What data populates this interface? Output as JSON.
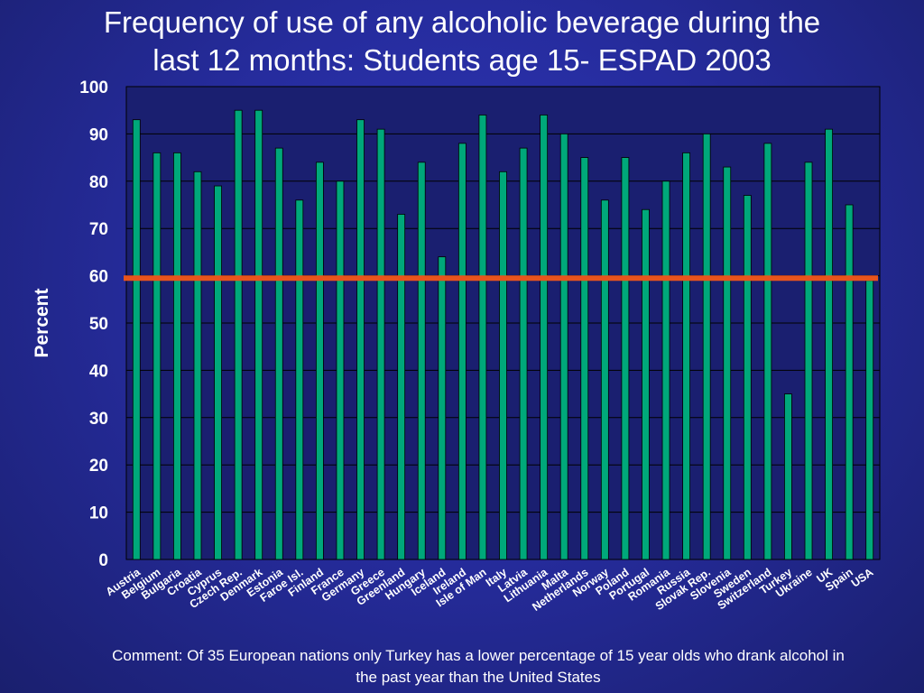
{
  "title": "Frequency of use of any alcoholic beverage during the\nlast 12 months: Students age 15- ESPAD 2003",
  "comment": "Comment: Of 35 European nations only Turkey has a lower percentage of 15 year olds who drank alcohol in\nthe past year than the United States",
  "colors": {
    "bar": "#00a87a",
    "reference_line": "#e8541c",
    "plot_background": "#1a1f70",
    "grid": "#000000",
    "text": "#ffffff"
  },
  "chart_data": {
    "type": "bar",
    "ylabel": "Percent",
    "ylim": [
      0,
      100
    ],
    "yticks": [
      0,
      10,
      20,
      30,
      40,
      50,
      60,
      70,
      80,
      90,
      100
    ],
    "grid": true,
    "reference_line": 59.5,
    "categories": [
      "Austria",
      "Belgium",
      "Bulgaria",
      "Croatia",
      "Cyprus",
      "Czech Rep.",
      "Denmark",
      "Estonia",
      "Faroe Isl.",
      "Finland",
      "France",
      "Germany",
      "Greece",
      "Greenland",
      "Hungary",
      "Iceland",
      "Ireland",
      "Isle of Man",
      "Italy",
      "Latvia",
      "Lithuania",
      "Malta",
      "Netherlands",
      "Norway",
      "Poland",
      "Portugal",
      "Romania",
      "Russia",
      "Slovak Rep.",
      "Slovenia",
      "Sweden",
      "Switzerland",
      "Turkey",
      "Ukraine",
      "UK",
      "Spain",
      "USA"
    ],
    "values": [
      93,
      86,
      86,
      82,
      79,
      95,
      95,
      87,
      76,
      84,
      80,
      93,
      91,
      73,
      84,
      64,
      88,
      94,
      82,
      87,
      94,
      90,
      85,
      76,
      85,
      74,
      80,
      86,
      90,
      83,
      77,
      88,
      35,
      84,
      91,
      75,
      59
    ]
  }
}
